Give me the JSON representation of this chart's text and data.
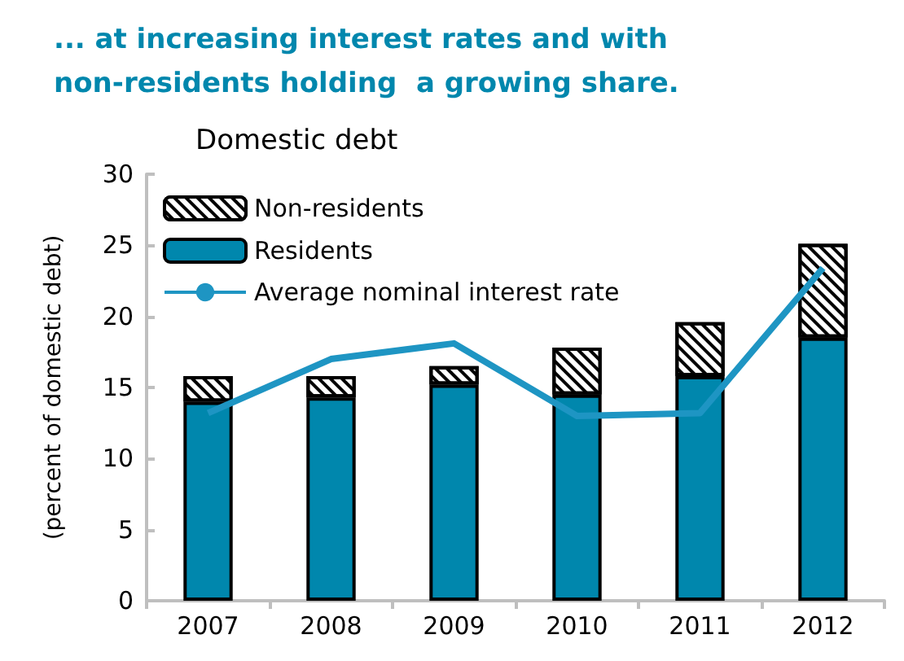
{
  "chart_data": {
    "type": "bar",
    "stacked": true,
    "title": "... at increasing interest rates and with non-residents holding  a growing share.",
    "subtitle": "Domestic debt",
    "ylabel": "(percent of domestic debt)",
    "categories": [
      "2007",
      "2008",
      "2009",
      "2010",
      "2011",
      "2012"
    ],
    "series": [
      {
        "name": "Residents",
        "color": "#0087ad",
        "values": [
          14.0,
          14.3,
          15.2,
          14.5,
          15.8,
          18.5
        ]
      },
      {
        "name": "Non-residents",
        "color": "#ffffff",
        "values": [
          1.8,
          1.5,
          1.3,
          3.3,
          3.8,
          6.6
        ]
      },
      {
        "name": "Average nominal interest rate",
        "type": "line",
        "color": "#1e95c3",
        "values": [
          13.2,
          17.0,
          18.1,
          13.0,
          13.2,
          23.4
        ]
      }
    ],
    "ylim": [
      0,
      30
    ],
    "yticks": [
      0,
      5,
      10,
      15,
      20,
      25,
      30
    ],
    "grid": false,
    "legend": "top left",
    "marker": "none"
  }
}
